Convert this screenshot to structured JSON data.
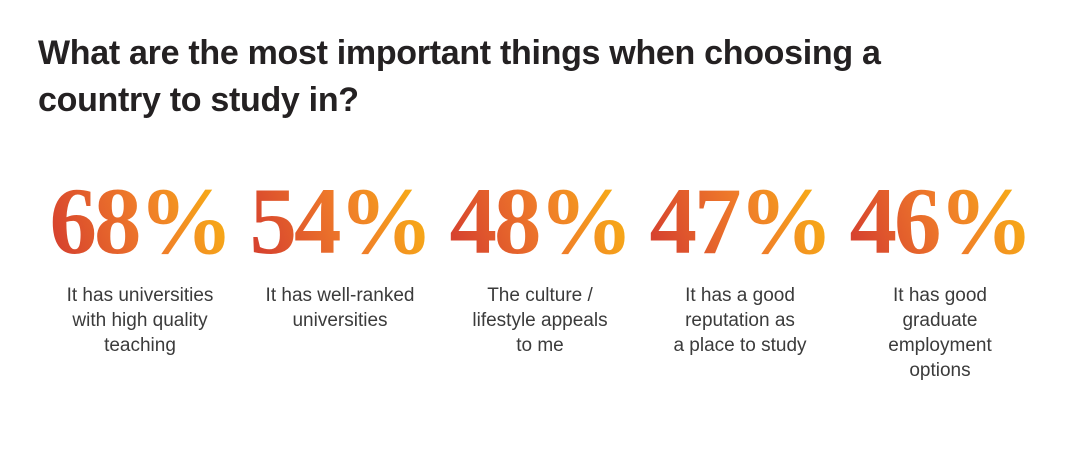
{
  "title": {
    "text": "What are the most important things when choosing a country to study in?"
  },
  "stats": [
    {
      "value": "68%",
      "label_lines": [
        "It has universities",
        "with high quality",
        "teaching"
      ]
    },
    {
      "value": "54%",
      "label_lines": [
        "It has well-ranked",
        "universities"
      ]
    },
    {
      "value": "48%",
      "label_lines": [
        "The culture /",
        "lifestyle appeals",
        "to me"
      ]
    },
    {
      "value": "47%",
      "label_lines": [
        "It has a good",
        "reputation as",
        "a place to study"
      ]
    },
    {
      "value": "46%",
      "label_lines": [
        "It has good",
        "graduate",
        "employment",
        "options"
      ]
    }
  ],
  "colors": {
    "background": "#ffffff",
    "title_text": "#242122",
    "label_text": "#3b3b3b",
    "number_gradient_start": "#d7432e",
    "number_gradient_mid": "#ef7b2a",
    "number_gradient_end": "#f8b214"
  },
  "chart_data": {
    "type": "table",
    "title": "What are the most important things when choosing a country to study in?",
    "categories": [
      "It has universities with high quality teaching",
      "It has well-ranked universities",
      "The culture / lifestyle appeals to me",
      "It has a good reputation as a place to study",
      "It has good graduate employment options"
    ],
    "values": [
      68,
      54,
      48,
      47,
      46
    ],
    "unit": "%",
    "value_range": [
      0,
      100
    ],
    "layout": "horizontal row of large stat numbers with captions, no axes, no grid, no legend"
  }
}
